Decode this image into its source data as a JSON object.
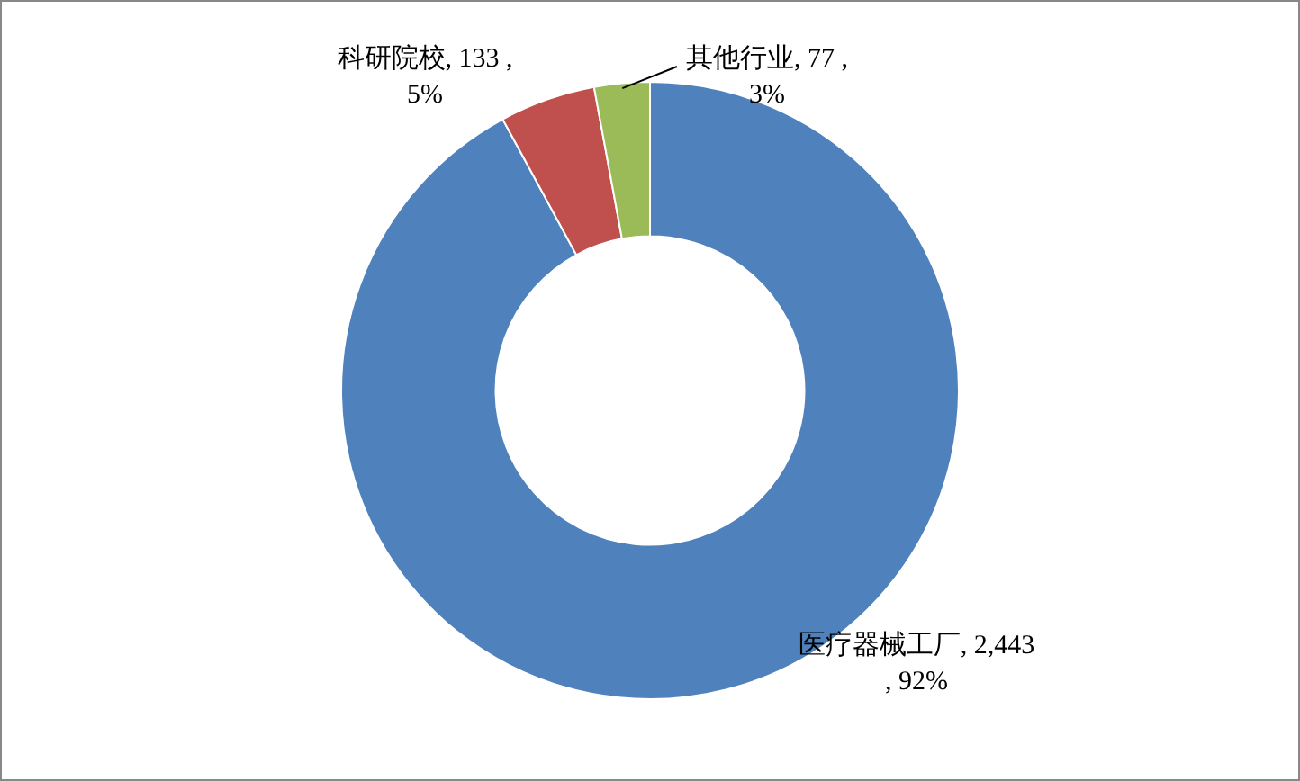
{
  "chart_data": {
    "type": "donut",
    "categories": [
      "医疗器械工厂",
      "科研院校",
      "其他行业"
    ],
    "values": [
      2443,
      133,
      77
    ],
    "colors": [
      "#4f81bd",
      "#c0504d",
      "#9bbb59"
    ],
    "value_labels": [
      "2,443 , 92%",
      "133 , 5%",
      "77 , 3%"
    ],
    "legend": false
  }
}
